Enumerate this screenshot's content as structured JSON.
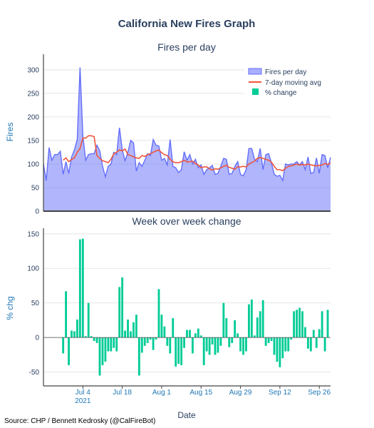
{
  "chart_data": {
    "title": "California New Fires Graph",
    "xlabel": "Date",
    "source": "Source: CHP / Bennett Kedrosky (@CalFireBot)",
    "x_start": "2021-06-20",
    "x_ticks": [
      {
        "label": "Jul 4",
        "sub": "2021",
        "date": "2021-07-04"
      },
      {
        "label": "Jul 18",
        "sub": "",
        "date": "2021-07-18"
      },
      {
        "label": "Aug 1",
        "sub": "",
        "date": "2021-08-01"
      },
      {
        "label": "Aug 15",
        "sub": "",
        "date": "2021-08-15"
      },
      {
        "label": "Aug 29",
        "sub": "",
        "date": "2021-08-29"
      },
      {
        "label": "Sep 12",
        "sub": "",
        "date": "2021-09-12"
      },
      {
        "label": "Sep 26",
        "sub": "",
        "date": "2021-09-26"
      }
    ],
    "panels": [
      {
        "type": "area+line",
        "subtitle": "Fires per day",
        "ylabel": "Fires",
        "ylim": [
          0,
          330
        ],
        "yticks": [
          0,
          50,
          100,
          150,
          200,
          250,
          300
        ],
        "legend": {
          "position": "top-right",
          "entries": [
            {
              "name": "Fires per day",
              "color": "#636efa"
            },
            {
              "name": "7-day moving avg",
              "color": "#ef553b"
            },
            {
              "name": "% change",
              "color": "#00cc96"
            }
          ]
        },
        "series": [
          {
            "name": "Fires per day",
            "color": "#636efa",
            "values": [
              100,
              65,
              135,
              108,
              120,
              120,
              127,
              78,
              105,
              80,
              115,
              130,
              152,
              305,
              160,
              108,
              120,
              122,
              122,
              140,
              128,
              95,
              73,
              95,
              100,
              125,
              120,
              177,
              130,
              107,
              125,
              150,
              145,
              85,
              103,
              95,
              108,
              122,
              118,
              152,
              140,
              138,
              108,
              112,
              98,
              152,
              95,
              92,
              82,
              88,
              126,
              108,
              120,
              100,
              110,
              92,
              98,
              78,
              88,
              92,
              97,
              78,
              80,
              95,
              112,
              110,
              78,
              80,
              95,
              105,
              78,
              75,
              88,
              133,
              133,
              110,
              105,
              133,
              88,
              120,
              122,
              102,
              78,
              74,
              76,
              65,
              100,
              98,
              100,
              100,
              105,
              98,
              105,
              88,
              115,
              80,
              82,
              113,
              80,
              120,
              118,
              92,
              114
            ]
          },
          {
            "name": "7-day moving avg",
            "color": "#ef553b",
            "values": [
              null,
              null,
              null,
              null,
              null,
              null,
              null,
              108,
              113,
              105,
              110,
              113,
              125,
              133,
              155,
              155,
              160,
              160,
              158,
              118,
              112,
              107,
              105,
              103,
              110,
              122,
              125,
              130,
              128,
              132,
              120,
              118,
              115,
              113,
              112,
              118,
              116,
              120,
              122,
              125,
              128,
              130,
              124,
              120,
              118,
              110,
              105,
              103,
              103,
              105,
              108,
              104,
              105,
              106,
              101,
              98,
              92,
              94,
              94,
              90,
              87,
              90,
              89,
              92,
              95,
              97,
              93,
              91,
              89,
              94,
              94,
              95,
              94,
              100,
              103,
              106,
              112,
              114,
              112,
              110,
              108,
              104,
              95,
              88,
              88,
              86,
              91,
              95,
              96,
              98,
              100,
              98,
              99,
              98,
              100,
              98,
              97,
              96,
              97,
              98,
              101,
              99,
              102
            ]
          },
          {
            "name": "% change",
            "color": "#00cc96",
            "values": []
          }
        ]
      },
      {
        "type": "bar",
        "subtitle": "Week over week change",
        "ylabel": "% chg",
        "ylim": [
          -70,
          158
        ],
        "yticks": [
          -50,
          0,
          50,
          100,
          150
        ],
        "series": [
          {
            "name": "% change",
            "color": "#00cc96",
            "values": [
              null,
              null,
              null,
              null,
              null,
              null,
              null,
              -23,
              67,
              -40,
              10,
              9,
              26,
              142,
              143,
              2,
              50,
              2,
              -5,
              -8,
              -55,
              -40,
              -35,
              -20,
              -20,
              -15,
              -20,
              73,
              87,
              10,
              26,
              9,
              22,
              33,
              -55,
              -22,
              -12,
              -8,
              -3,
              -18,
              -3,
              70,
              33,
              16,
              -12,
              -23,
              28,
              -42,
              -38,
              -40,
              -15,
              11,
              11,
              -23,
              6,
              13,
              3,
              -40,
              -20,
              -25,
              -10,
              -25,
              -22,
              -12,
              50,
              28,
              -14,
              -8,
              25,
              6,
              -20,
              -25,
              -20,
              48,
              55,
              3,
              29,
              38,
              54,
              -12,
              -8,
              -5,
              -25,
              -35,
              -43,
              -30,
              -20,
              -20,
              -3,
              38,
              40,
              43,
              38,
              15,
              -16,
              -20,
              11,
              -15,
              12,
              38,
              -20,
              40
            ]
          }
        ]
      }
    ]
  }
}
